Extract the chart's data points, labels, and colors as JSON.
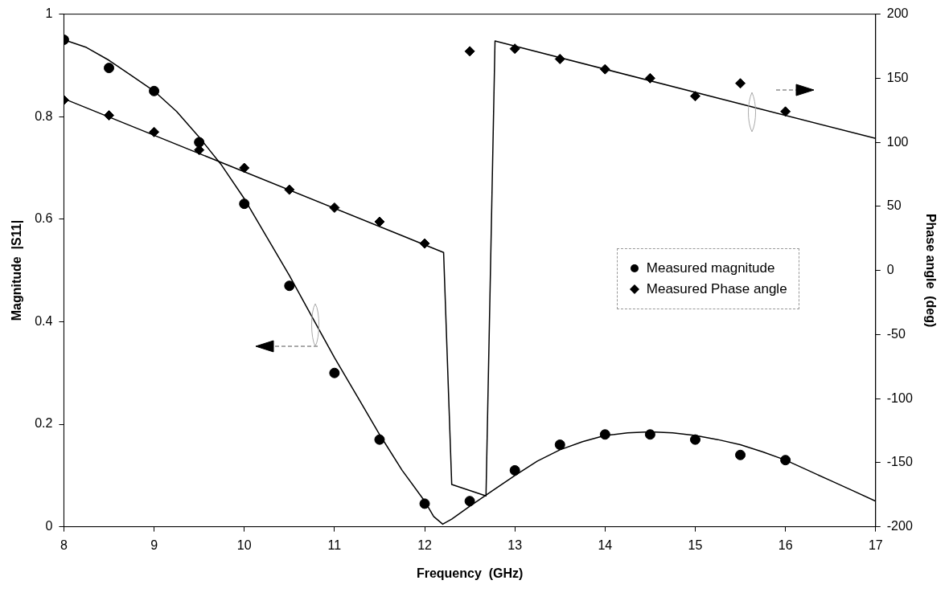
{
  "chart_data": {
    "type": "scatter",
    "xlabel": "Frequency  (GHz)",
    "ylabel": "Magnitude  |S11|",
    "y2label": "Phase angle  (deg)",
    "xlim": [
      8,
      17
    ],
    "xticks": [
      8,
      9,
      10,
      11,
      12,
      13,
      14,
      15,
      16,
      17
    ],
    "ylim": [
      0,
      1
    ],
    "yticks": [
      0,
      0.2,
      0.4,
      0.6,
      0.8,
      1
    ],
    "y2lim": [
      -200,
      200
    ],
    "y2ticks": [
      -200,
      -150,
      -100,
      -50,
      0,
      50,
      100,
      150,
      200
    ],
    "grid": false,
    "legend": "right",
    "series": [
      {
        "name": "Measured magnitude",
        "marker": "circle",
        "color": "#000000",
        "x": [
          8,
          8.5,
          9,
          9.5,
          10,
          10.5,
          11,
          11.5,
          12,
          12.5,
          13,
          13.5,
          14,
          14.5,
          15,
          15.5,
          16
        ],
        "values": [
          0.95,
          0.895,
          0.85,
          0.75,
          0.63,
          0.47,
          0.3,
          0.17,
          0.045,
          0.05,
          0.11,
          0.16,
          0.18,
          0.18,
          0.17,
          0.14,
          0.13
        ]
      },
      {
        "name": "Measured Phase angle",
        "marker": "diamond",
        "axis": "y2",
        "color": "#000000",
        "x": [
          8,
          8.5,
          9,
          9.5,
          10,
          10.5,
          11,
          11.5,
          12,
          12.5,
          13,
          13.5,
          14,
          14.5,
          15,
          15.5,
          16
        ],
        "values": [
          133,
          121,
          108,
          94,
          80,
          63,
          49,
          38,
          21,
          171,
          173,
          165,
          157,
          150,
          136,
          146,
          124
        ]
      },
      {
        "type": "line",
        "marker": "none",
        "color": "#000000",
        "x": [
          8,
          8.25,
          8.5,
          8.75,
          9,
          9.25,
          9.5,
          9.75,
          10,
          10.25,
          10.5,
          10.75,
          11,
          11.25,
          11.5,
          11.75,
          12,
          12.1,
          12.2,
          12.3,
          12.5,
          12.75,
          13,
          13.25,
          13.5,
          13.75,
          14,
          14.25,
          14.5,
          14.75,
          15,
          15.25,
          15.5,
          15.75,
          16,
          16.25,
          16.5,
          16.75,
          17
        ],
        "values": [
          0.95,
          0.935,
          0.91,
          0.88,
          0.85,
          0.81,
          0.76,
          0.705,
          0.64,
          0.565,
          0.49,
          0.41,
          0.33,
          0.255,
          0.18,
          0.11,
          0.05,
          0.02,
          0.005,
          0.015,
          0.04,
          0.07,
          0.1,
          0.128,
          0.15,
          0.166,
          0.178,
          0.183,
          0.185,
          0.183,
          0.178,
          0.17,
          0.16,
          0.146,
          0.13,
          0.11,
          0.09,
          0.07,
          0.05
        ]
      },
      {
        "type": "line",
        "marker": "none",
        "axis": "y2",
        "color": "#000000",
        "x": [
          8,
          12.21,
          12.3,
          12.68,
          12.78,
          17
        ],
        "values": [
          134,
          14,
          -167,
          -176,
          179,
          103
        ]
      }
    ]
  }
}
